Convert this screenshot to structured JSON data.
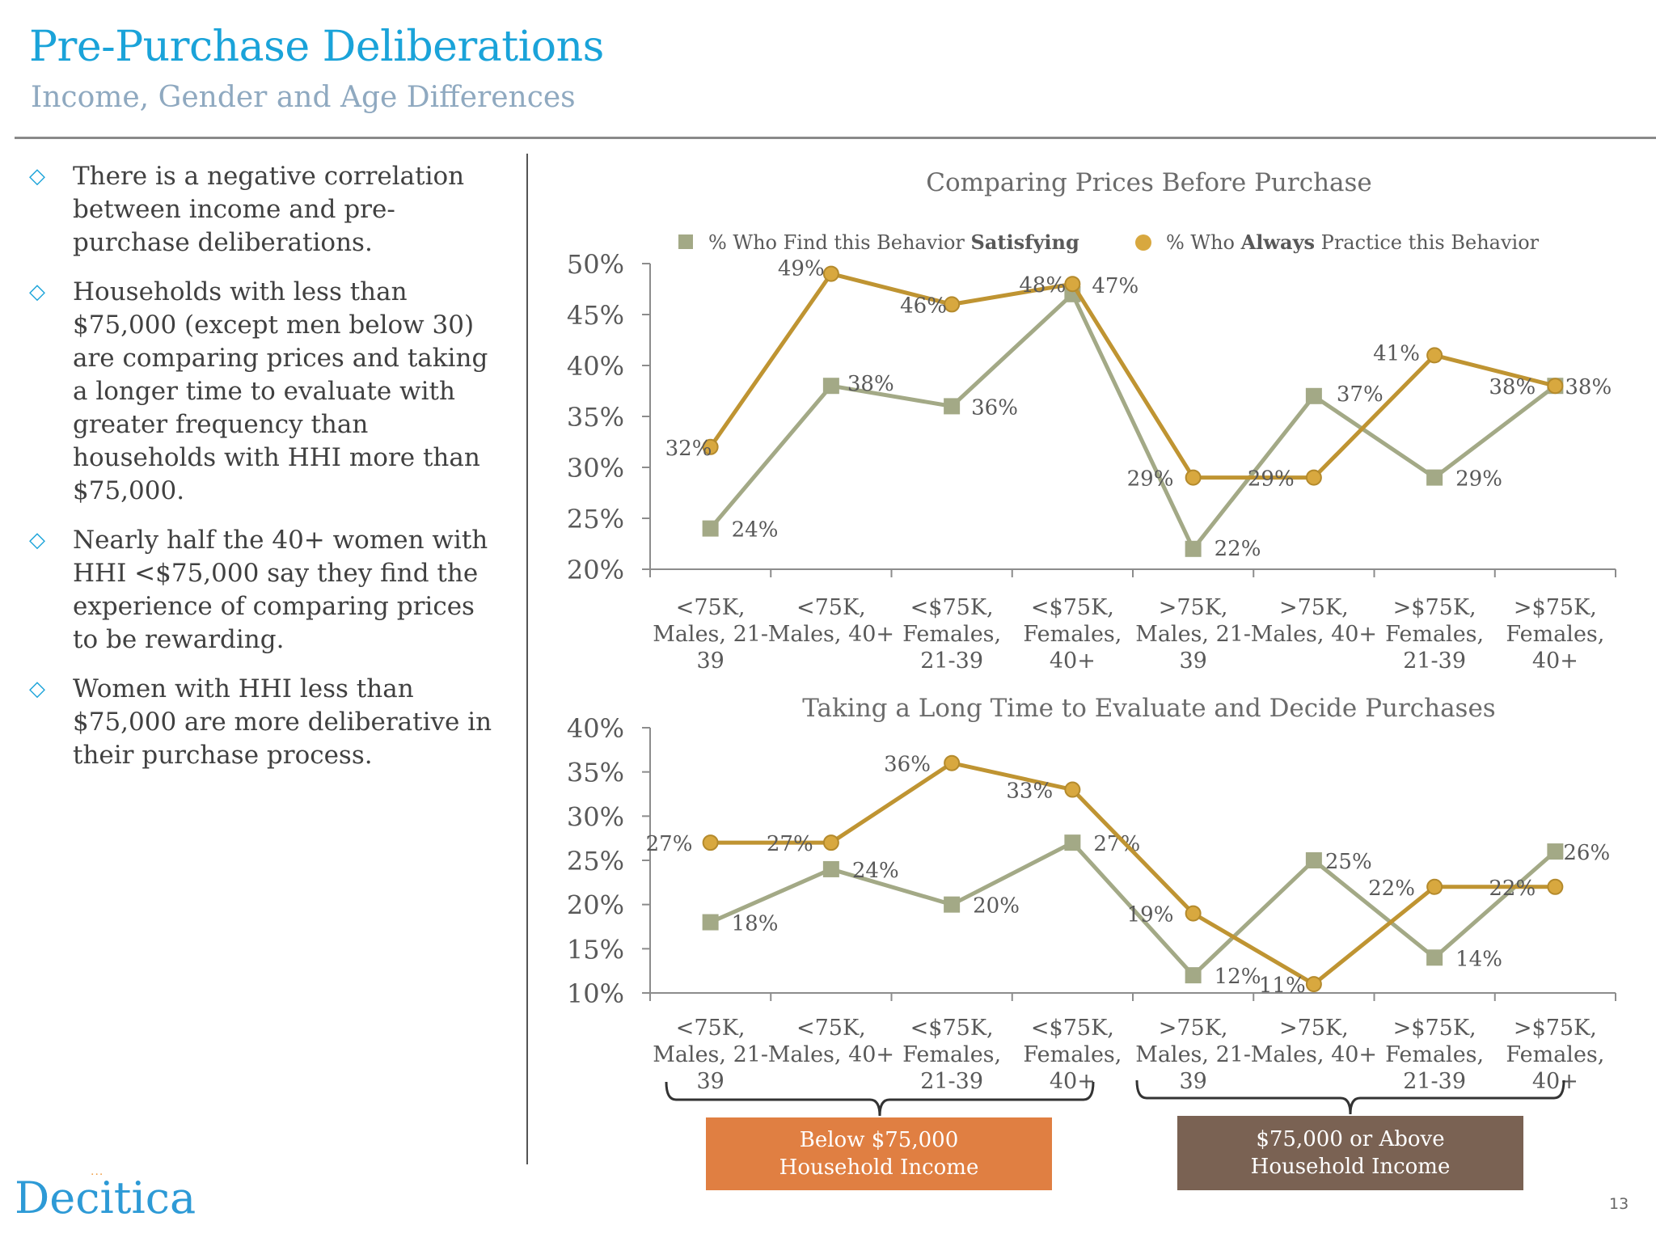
{
  "slide": {
    "title": "Pre-Purchase Deliberations",
    "subtitle": "Income, Gender and Age Differences",
    "page_number": "13"
  },
  "bullets": [
    {
      "text": "There is a negative correlation between income and pre-purchase deliberations."
    },
    {
      "text": "Households with less than $75,000 (except men below 30) are comparing prices and taking a longer time to evaluate with greater frequency than households with HHI more than $75,000."
    },
    {
      "text": "Nearly half the 40+ women with HHI <$75,000 say they find the experience of comparing prices to be rewarding."
    },
    {
      "text": "Women with HHI less than $75,000 are more deliberative in their purchase process."
    }
  ],
  "legend": {
    "satisfying": {
      "prefix": "% Who Find this Behavior ",
      "bold": "Satisfying",
      "suffix": ""
    },
    "always": {
      "prefix": "% Who ",
      "bold": "Always",
      "suffix": " Practice this Behavior"
    }
  },
  "groups": {
    "low": {
      "line1": "Below $75,000",
      "line2": "Household Income"
    },
    "high": {
      "line1": "$75,000 or Above",
      "line2": "Household Income"
    }
  },
  "logo": {
    "text": "Decitica"
  },
  "colors": {
    "satisfying": "#a3a986",
    "always": "#bf9432",
    "always_marker": "#d8a83f",
    "accent": "#1aa3d9"
  },
  "chart_data": [
    {
      "type": "line",
      "title": "Comparing Prices Before Purchase",
      "categories": [
        [
          "<75K,",
          "Males, 21-",
          "39"
        ],
        [
          "<75K,",
          "Males, 40+"
        ],
        [
          "<$75K,",
          "Females,",
          "21-39"
        ],
        [
          "<$75K,",
          "Females,",
          "40+"
        ],
        [
          ">75K,",
          "Males, 21-",
          "39"
        ],
        [
          ">75K,",
          "Males, 40+"
        ],
        [
          ">$75K,",
          "Females,",
          "21-39"
        ],
        [
          ">$75K,",
          "Females,",
          "40+"
        ]
      ],
      "ylim": [
        20,
        50
      ],
      "yticks": [
        "20%",
        "25%",
        "30%",
        "35%",
        "40%",
        "45%",
        "50%"
      ],
      "legend_position": "top",
      "series": [
        {
          "key": "satisfying",
          "values": [
            24,
            38,
            36,
            47,
            22,
            37,
            29,
            38
          ],
          "labels": [
            "24%",
            "38%",
            "36%",
            "47%",
            "22%",
            "37%",
            "29%",
            "38%"
          ]
        },
        {
          "key": "always",
          "values": [
            32,
            49,
            46,
            48,
            29,
            29,
            41,
            38
          ],
          "labels": [
            "32%",
            "49%",
            "46%",
            "48%",
            "29%",
            "29%",
            "41%",
            "38%"
          ]
        }
      ]
    },
    {
      "type": "line",
      "title": "Taking a Long Time to Evaluate and Decide Purchases",
      "categories": [
        [
          "<75K,",
          "Males, 21-",
          "39"
        ],
        [
          "<75K,",
          "Males, 40+"
        ],
        [
          "<$75K,",
          "Females,",
          "21-39"
        ],
        [
          "<$75K,",
          "Females,",
          "40+"
        ],
        [
          ">75K,",
          "Males, 21-",
          "39"
        ],
        [
          ">75K,",
          "Males, 40+"
        ],
        [
          ">$75K,",
          "Females,",
          "21-39"
        ],
        [
          ">$75K,",
          "Females,",
          "40+"
        ]
      ],
      "ylim": [
        10,
        40
      ],
      "yticks": [
        "10%",
        "15%",
        "20%",
        "25%",
        "30%",
        "35%",
        "40%"
      ],
      "series": [
        {
          "key": "satisfying",
          "values": [
            18,
            24,
            20,
            27,
            12,
            25,
            14,
            26
          ],
          "labels": [
            "18%",
            "24%",
            "20%",
            "27%",
            "12%",
            "25%",
            "14%",
            "26%"
          ]
        },
        {
          "key": "always",
          "values": [
            27,
            27,
            36,
            33,
            19,
            11,
            22,
            22
          ],
          "labels": [
            "27%",
            "27%",
            "36%",
            "33%",
            "19%",
            "11%",
            "22%",
            "22%"
          ]
        }
      ]
    }
  ]
}
